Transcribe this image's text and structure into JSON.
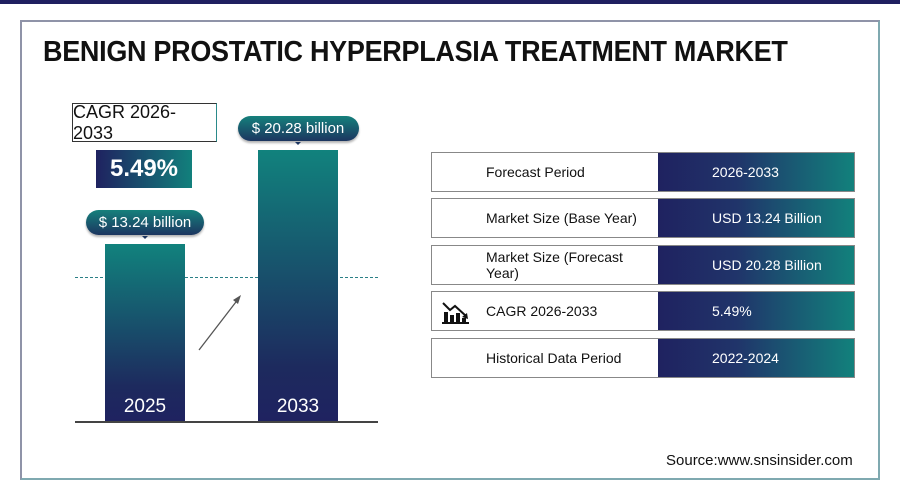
{
  "title": "BENIGN PROSTATIC HYPERPLASIA TREATMENT MARKET",
  "cagr": {
    "label": "CAGR 2026-2033",
    "value": "5.49%"
  },
  "chart_data": {
    "type": "bar",
    "categories": [
      "2025",
      "2033"
    ],
    "values": [
      13.24,
      20.28
    ],
    "data_labels": [
      "$ 13.24 billion",
      "$ 20.28 billion"
    ],
    "ylabel": "",
    "xlabel": "",
    "colors": [
      "#11827d",
      "#1f2260"
    ]
  },
  "table": [
    {
      "label": "Forecast Period",
      "value": "2026-2033"
    },
    {
      "label": "Market Size (Base Year)",
      "value": "USD 13.24 Billion"
    },
    {
      "label": "Market Size (Forecast Year)",
      "value": "USD 20.28 Billion"
    },
    {
      "label": "CAGR 2026-2033",
      "value": "5.49%",
      "icon": "chart-icon"
    },
    {
      "label": "Historical Data Period",
      "value": "2022-2024"
    }
  ],
  "source": "Source:www.snsinsider.com"
}
